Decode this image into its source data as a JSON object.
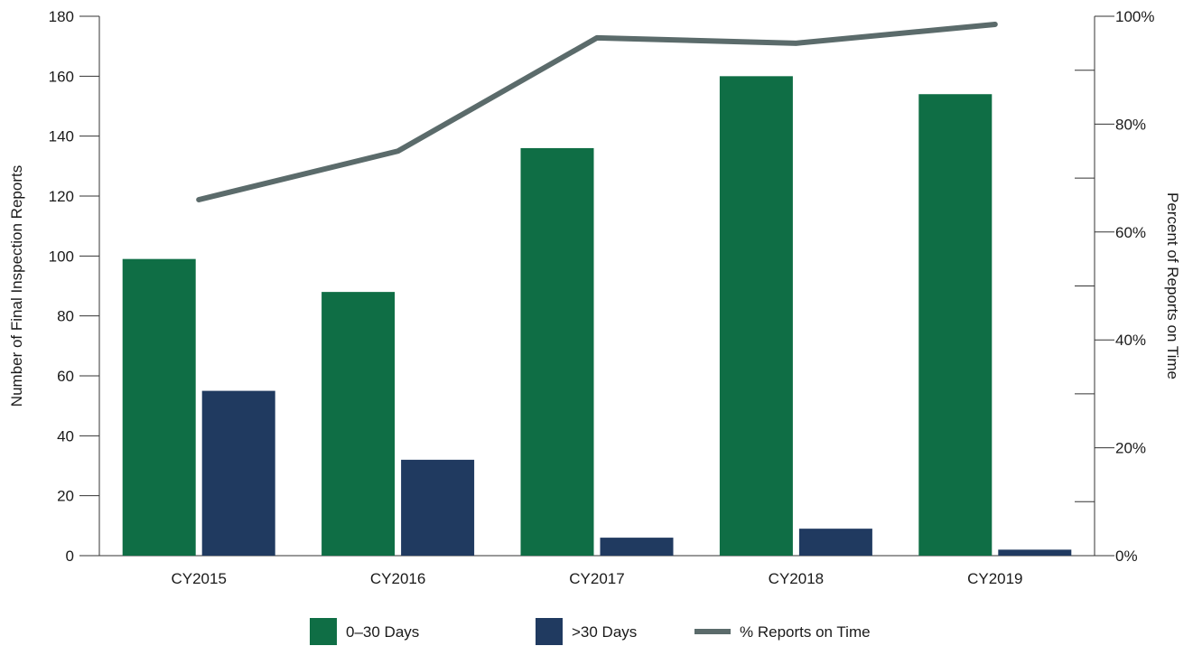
{
  "chart_data": {
    "type": "bar",
    "categories": [
      "CY2015",
      "CY2016",
      "CY2017",
      "CY2018",
      "CY2019"
    ],
    "series": [
      {
        "name": "0–30 Days",
        "kind": "bar",
        "axis": "left",
        "color": "#0f6e45",
        "values": [
          99,
          88,
          136,
          160,
          154
        ]
      },
      {
        "name": ">30 Days",
        "kind": "bar",
        "axis": "left",
        "color": "#203a60",
        "values": [
          55,
          32,
          6,
          9,
          2
        ]
      },
      {
        "name": "% Reports on Time",
        "kind": "line",
        "axis": "right",
        "color": "#5b6b6b",
        "values": [
          66,
          75,
          96,
          95,
          98.5
        ]
      }
    ],
    "ylabel": "Number of Final Inspection Reports",
    "ylim": [
      0,
      180
    ],
    "yticks": [
      "0",
      "20",
      "40",
      "60",
      "80",
      "100",
      "120",
      "140",
      "160",
      "180"
    ],
    "y2label": "Percent of Reports on Time",
    "y2lim": [
      0,
      100
    ],
    "y2ticks": [
      "0%",
      "20%",
      "40%",
      "60%",
      "80%",
      "100%"
    ],
    "grid": false,
    "legend_position": "bottom"
  }
}
